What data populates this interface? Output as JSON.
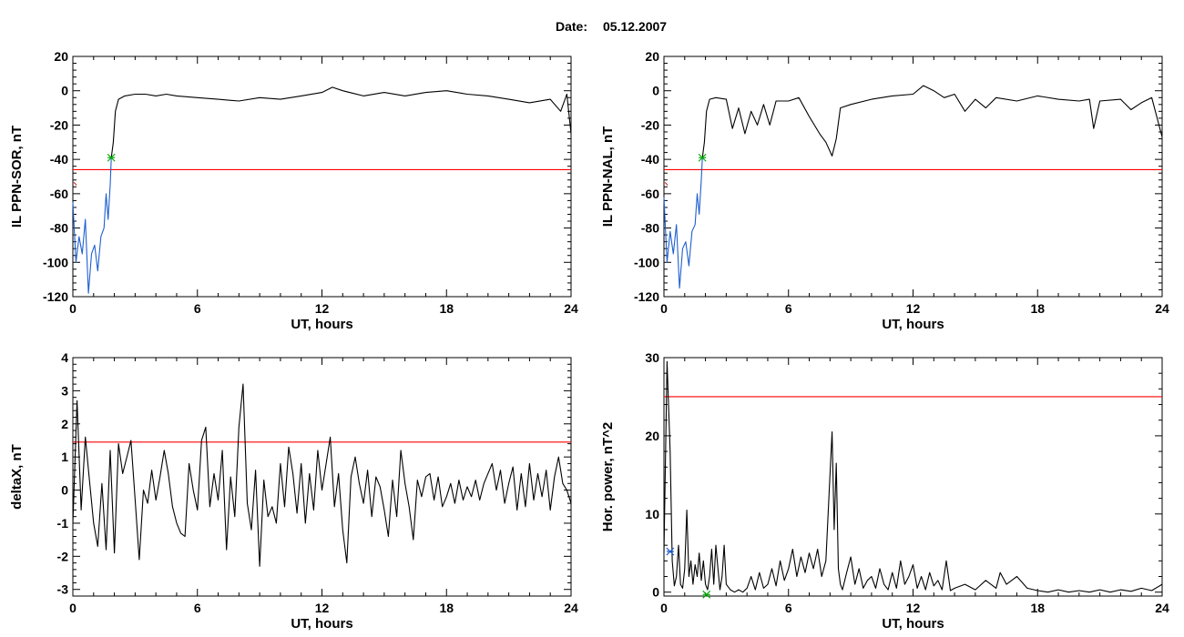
{
  "page": {
    "date_label": "Date:",
    "date_value": "05.12.2007"
  },
  "chart_data": [
    {
      "type": "line",
      "ylabel": "IL PPN-SOR, nT",
      "xlabel": "UT, hours",
      "xlim": [
        0,
        24
      ],
      "ylim": [
        -120,
        20
      ],
      "xticks": [
        0,
        6,
        12,
        18,
        24
      ],
      "yticks": [
        20,
        0,
        -20,
        -40,
        -60,
        -80,
        -100,
        -120
      ],
      "threshold": -46,
      "threshold_color": "#ff0000",
      "colors": {
        "main": "#000000",
        "pre": "#1f5fcf",
        "marker": "#00aa00"
      },
      "marker": {
        "x": 1.85,
        "y": -39,
        "color": "#00aa00"
      },
      "start_mark": {
        "x": 0.05,
        "y": -55,
        "color": "#cc0000"
      },
      "series": [
        {
          "x": [
            0.0,
            0.15,
            0.3,
            0.45,
            0.6,
            0.75,
            0.9,
            1.05,
            1.2,
            1.35,
            1.5,
            1.6,
            1.7,
            1.8,
            1.85
          ],
          "values": [
            -65,
            -100,
            -85,
            -95,
            -75,
            -118,
            -95,
            -90,
            -105,
            -85,
            -80,
            -60,
            -75,
            -55,
            -39
          ]
        },
        {
          "x": [
            1.85,
            1.95,
            2.05,
            2.2,
            2.5,
            3,
            3.5,
            4,
            4.5,
            5,
            6,
            7,
            8,
            9,
            10,
            11,
            12,
            12.5,
            13,
            14,
            15,
            16,
            17,
            18,
            19,
            20,
            21,
            22,
            23,
            23.5,
            23.8,
            24
          ],
          "values": [
            -39,
            -30,
            -12,
            -5,
            -3,
            -2,
            -2,
            -3,
            -2,
            -3,
            -4,
            -5,
            -6,
            -4,
            -5,
            -3,
            -1,
            2,
            0,
            -3,
            -1,
            -3,
            -1,
            0,
            -2,
            -3,
            -5,
            -7,
            -5,
            -12,
            -2,
            -25
          ]
        }
      ]
    },
    {
      "type": "line",
      "ylabel": "IL PPN-NAL, nT",
      "xlabel": "UT, hours",
      "xlim": [
        0,
        24
      ],
      "ylim": [
        -120,
        20
      ],
      "xticks": [
        0,
        6,
        12,
        18,
        24
      ],
      "yticks": [
        20,
        0,
        -20,
        -40,
        -60,
        -80,
        -100,
        -120
      ],
      "threshold": -46,
      "threshold_color": "#ff0000",
      "colors": {
        "main": "#000000",
        "pre": "#1f5fcf",
        "marker": "#00aa00"
      },
      "marker": {
        "x": 1.85,
        "y": -39,
        "color": "#00aa00"
      },
      "start_mark": {
        "x": 0.05,
        "y": -55,
        "color": "#cc0000"
      },
      "series": [
        {
          "x": [
            0.0,
            0.15,
            0.3,
            0.45,
            0.6,
            0.75,
            0.9,
            1.05,
            1.2,
            1.35,
            1.5,
            1.6,
            1.7,
            1.8,
            1.85
          ],
          "values": [
            -62,
            -100,
            -82,
            -95,
            -78,
            -115,
            -92,
            -88,
            -102,
            -82,
            -78,
            -60,
            -72,
            -52,
            -39
          ]
        },
        {
          "x": [
            1.85,
            1.95,
            2.05,
            2.2,
            2.5,
            3,
            3.3,
            3.6,
            3.9,
            4.2,
            4.5,
            4.8,
            5.1,
            5.4,
            6,
            6.5,
            7,
            7.5,
            7.8,
            8.1,
            8.3,
            8.5,
            9,
            10,
            11,
            12,
            12.5,
            13,
            13.5,
            14,
            14.5,
            15,
            15.5,
            16,
            17,
            18,
            19,
            20,
            20.5,
            20.7,
            21,
            22,
            22.5,
            23,
            23.5,
            24
          ],
          "values": [
            -39,
            -30,
            -12,
            -5,
            -4,
            -5,
            -22,
            -10,
            -25,
            -12,
            -20,
            -8,
            -20,
            -6,
            -6,
            -4,
            -15,
            -25,
            -30,
            -38,
            -28,
            -10,
            -8,
            -5,
            -3,
            -2,
            3,
            0,
            -4,
            -2,
            -12,
            -5,
            -10,
            -4,
            -6,
            -3,
            -5,
            -6,
            -5,
            -22,
            -6,
            -5,
            -11,
            -7,
            -4,
            -27
          ]
        }
      ]
    },
    {
      "type": "line",
      "ylabel": "deltaX, nT",
      "xlabel": "UT, hours",
      "xlim": [
        0,
        24
      ],
      "ylim": [
        -3.2,
        4
      ],
      "xticks": [
        0,
        6,
        12,
        18,
        24
      ],
      "yticks": [
        4,
        3,
        2,
        1,
        0,
        -1,
        -2,
        -3
      ],
      "threshold": 1.45,
      "threshold_color": "#ff0000",
      "colors": {
        "main": "#000000"
      },
      "series": [
        {
          "x": [
            0.0,
            0.2,
            0.4,
            0.6,
            0.8,
            1.0,
            1.2,
            1.4,
            1.6,
            1.8,
            2.0,
            2.2,
            2.4,
            2.6,
            2.8,
            3.0,
            3.2,
            3.4,
            3.6,
            3.8,
            4.0,
            4.2,
            4.4,
            4.6,
            4.8,
            5.0,
            5.2,
            5.4,
            5.6,
            5.8,
            6.0,
            6.2,
            6.4,
            6.6,
            6.8,
            7.0,
            7.2,
            7.4,
            7.6,
            7.8,
            8.0,
            8.2,
            8.4,
            8.6,
            8.8,
            9.0,
            9.2,
            9.4,
            9.6,
            9.8,
            10.0,
            10.2,
            10.4,
            10.6,
            10.8,
            11.0,
            11.2,
            11.4,
            11.6,
            11.8,
            12.0,
            12.2,
            12.4,
            12.6,
            12.8,
            13.0,
            13.2,
            13.4,
            13.6,
            13.8,
            14.0,
            14.2,
            14.4,
            14.6,
            14.8,
            15.0,
            15.2,
            15.4,
            15.6,
            15.8,
            16.0,
            16.2,
            16.4,
            16.6,
            16.8,
            17.0,
            17.2,
            17.4,
            17.6,
            17.8,
            18.0,
            18.2,
            18.4,
            18.6,
            18.8,
            19.0,
            19.2,
            19.4,
            19.6,
            19.8,
            20.0,
            20.2,
            20.4,
            20.6,
            20.8,
            21.0,
            21.2,
            21.4,
            21.6,
            21.8,
            22.0,
            22.2,
            22.4,
            22.6,
            22.8,
            23.0,
            23.2,
            23.4,
            23.6,
            23.8,
            24.0
          ],
          "values": [
            -1.0,
            2.7,
            -0.6,
            1.6,
            0.3,
            -1.0,
            -1.7,
            0.2,
            -1.8,
            1.2,
            -1.9,
            1.4,
            0.5,
            1.0,
            1.5,
            -0.3,
            -2.1,
            0.0,
            -0.4,
            0.6,
            -0.3,
            0.4,
            1.2,
            0.5,
            -0.5,
            -1.0,
            -1.3,
            -1.4,
            0.8,
            0.0,
            -0.6,
            1.5,
            1.9,
            -0.5,
            0.5,
            -0.3,
            1.2,
            -1.8,
            0.4,
            -0.8,
            1.9,
            3.2,
            -0.4,
            -1.2,
            0.6,
            -2.3,
            0.3,
            -0.8,
            -0.5,
            -1.0,
            0.8,
            -0.5,
            1.3,
            0.5,
            -0.7,
            0.8,
            -1.0,
            0.5,
            -0.6,
            1.2,
            0.0,
            0.8,
            1.6,
            -0.5,
            0.5,
            -1.2,
            -2.2,
            0.4,
            1.0,
            0.2,
            -0.4,
            0.6,
            -0.8,
            0.4,
            0.1,
            -0.6,
            -1.4,
            0.3,
            -0.8,
            1.2,
            0.2,
            -0.5,
            -1.5,
            0.3,
            -0.2,
            0.4,
            0.5,
            -0.3,
            0.4,
            -0.5,
            -0.2,
            0.2,
            -0.4,
            0.3,
            -0.3,
            0.1,
            -0.2,
            0.3,
            -0.3,
            0.2,
            0.5,
            0.8,
            0.0,
            0.6,
            -0.4,
            0.2,
            0.7,
            -0.6,
            0.5,
            -0.5,
            0.8,
            -0.3,
            0.5,
            -0.2,
            0.6,
            -0.6,
            0.4,
            1.0,
            0.2,
            0.0,
            -0.4
          ]
        }
      ]
    },
    {
      "type": "line",
      "ylabel": "Hor. power, nT^2",
      "xlabel": "UT, hours",
      "xlim": [
        0,
        24
      ],
      "ylim": [
        -0.5,
        30
      ],
      "xticks": [
        0,
        6,
        12,
        18,
        24
      ],
      "yticks": [
        30,
        20,
        10,
        0
      ],
      "threshold": 25,
      "threshold_color": "#ff0000",
      "colors": {
        "main": "#000000",
        "blue": "#1f5fcf",
        "green": "#00aa00"
      },
      "markers": [
        {
          "x": 0.3,
          "y": 5.2,
          "color": "#1f5fcf"
        },
        {
          "x": 2.05,
          "y": -0.3,
          "color": "#00aa00"
        }
      ],
      "series": [
        {
          "x": [
            0.0,
            0.15,
            0.3,
            0.4,
            0.5,
            0.6,
            0.7,
            0.8,
            0.9,
            1.0,
            1.1,
            1.2,
            1.3,
            1.4,
            1.5,
            1.6,
            1.7,
            1.8,
            1.9,
            2.0,
            2.1,
            2.2,
            2.3,
            2.4,
            2.5,
            2.6,
            2.7,
            2.8,
            2.9,
            3.0,
            3.2,
            3.4,
            3.6,
            3.8,
            4.0,
            4.2,
            4.4,
            4.6,
            4.8,
            5.0,
            5.2,
            5.4,
            5.6,
            5.8,
            6.0,
            6.2,
            6.4,
            6.6,
            6.8,
            7.0,
            7.2,
            7.4,
            7.6,
            7.8,
            8.0,
            8.1,
            8.2,
            8.3,
            8.4,
            8.5,
            8.6,
            8.8,
            9.0,
            9.2,
            9.4,
            9.6,
            9.8,
            10.0,
            10.2,
            10.4,
            10.6,
            10.8,
            11.0,
            11.2,
            11.4,
            11.6,
            11.8,
            12.0,
            12.2,
            12.4,
            12.6,
            12.8,
            13.0,
            13.2,
            13.4,
            13.6,
            13.8,
            14.0,
            14.5,
            15.0,
            15.5,
            16.0,
            16.2,
            16.5,
            17.0,
            17.5,
            18.0,
            18.5,
            19.0,
            19.5,
            20.0,
            20.5,
            21.0,
            21.5,
            22.0,
            22.5,
            23.0,
            23.5,
            24.0
          ],
          "values": [
            5.0,
            29.5,
            18.0,
            4.0,
            0.8,
            2.0,
            6.0,
            1.0,
            0.5,
            3.0,
            10.5,
            2.0,
            4.0,
            1.0,
            3.5,
            2.0,
            5.0,
            1.5,
            4.0,
            1.0,
            0.3,
            2.0,
            5.5,
            1.0,
            6.0,
            3.0,
            0.3,
            2.0,
            6.0,
            1.0,
            0.3,
            0.0,
            0.3,
            0.0,
            0.5,
            2.0,
            0.3,
            2.5,
            0.5,
            1.0,
            3.0,
            0.8,
            4.0,
            1.5,
            3.0,
            5.5,
            2.0,
            4.5,
            2.5,
            5.0,
            3.0,
            5.5,
            2.0,
            4.0,
            15.0,
            20.5,
            8.0,
            16.5,
            3.0,
            1.0,
            0.3,
            2.5,
            4.5,
            1.0,
            3.0,
            0.5,
            1.5,
            2.0,
            0.5,
            3.0,
            1.0,
            0.3,
            2.5,
            0.5,
            4.0,
            1.0,
            2.0,
            3.5,
            0.5,
            2.0,
            0.3,
            2.5,
            0.8,
            1.5,
            0.3,
            4.0,
            0.2,
            0.5,
            1.0,
            0.3,
            1.5,
            0.5,
            2.5,
            1.0,
            2.0,
            0.5,
            0.2,
            0.0,
            0.3,
            0.0,
            0.2,
            0.0,
            0.3,
            0.0,
            0.3,
            0.1,
            0.5,
            0.2,
            1.0
          ]
        }
      ]
    }
  ]
}
